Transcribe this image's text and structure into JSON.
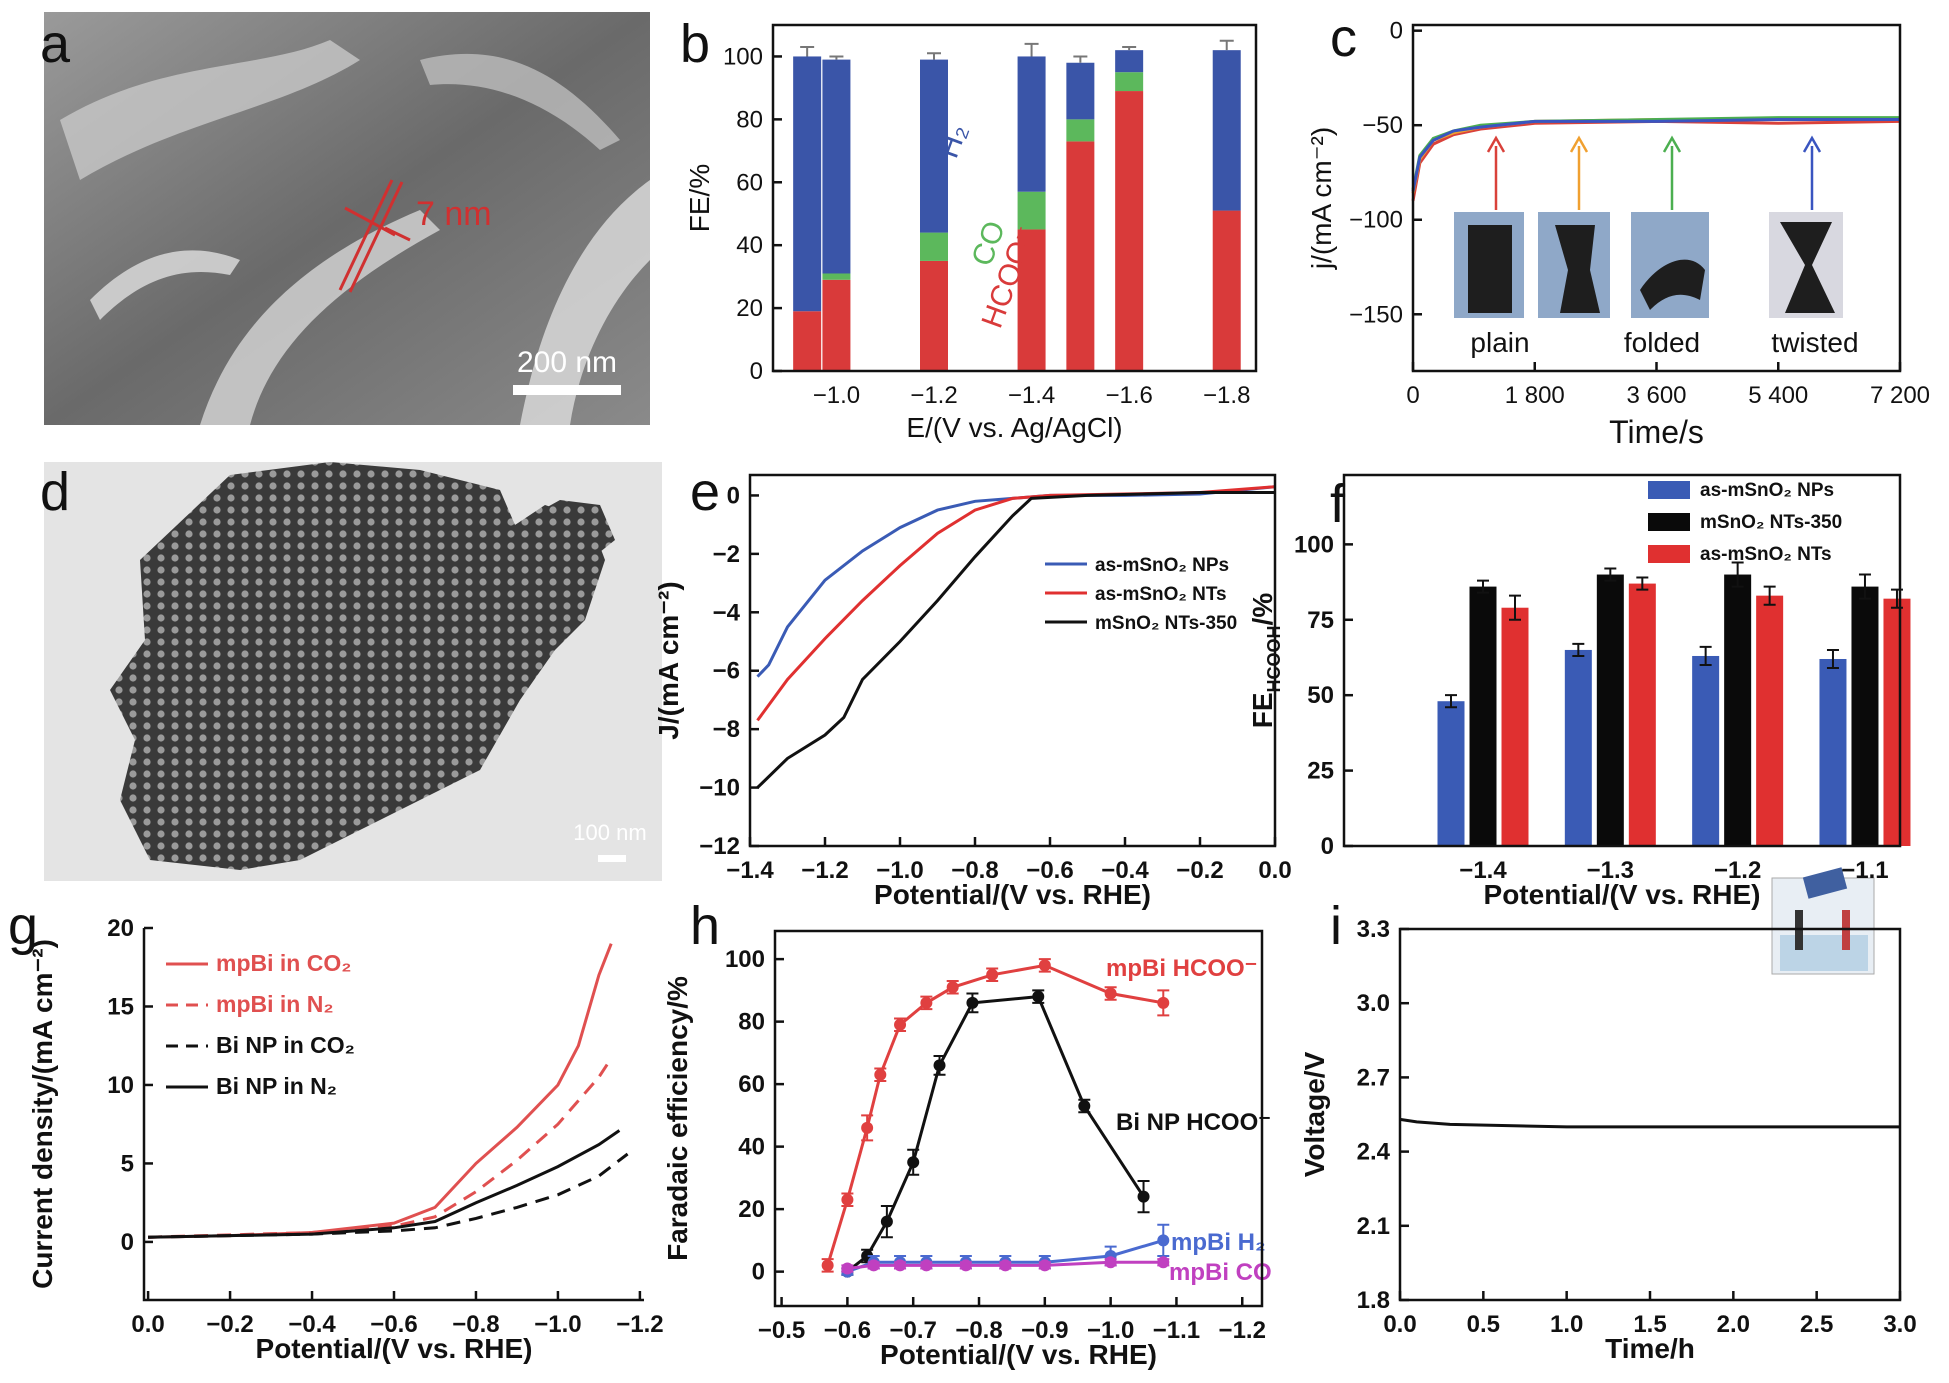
{
  "panel_labels": [
    "a",
    "b",
    "c",
    "d",
    "e",
    "f",
    "g",
    "h",
    "i"
  ],
  "images": {
    "a": {
      "annotation": "7 nm",
      "scale_bar": "200 nm"
    },
    "d": {
      "scale_bar": "100 nm"
    }
  },
  "chart_data": [
    {
      "type": "stacked_bar",
      "xlabel": "E/(V vs. Ag/AgCl)",
      "ylabel": "FE/%",
      "frame": true,
      "x": [
        -0.94,
        -1.0,
        -1.2,
        -1.4,
        -1.5,
        -1.6,
        -1.8
      ],
      "series": [
        {
          "name": "HCOO⁻",
          "color": "#d93a3a",
          "values": [
            19,
            29,
            35,
            45,
            73,
            89,
            51
          ]
        },
        {
          "name": "CO",
          "color": "#5cb85c",
          "values": [
            0,
            2,
            9,
            12,
            7,
            6,
            0
          ]
        },
        {
          "name": "H₂",
          "color": "#3a55a8",
          "values": [
            81,
            68,
            55,
            43,
            18,
            7,
            51
          ]
        }
      ],
      "errors": [
        3,
        1,
        2,
        4,
        2,
        1,
        3
      ],
      "xlim": [
        -0.87,
        -1.86
      ],
      "ylim": [
        0,
        110
      ],
      "xticks": [
        {
          "value": -1.0,
          "label": "−1.0"
        },
        {
          "value": -1.2,
          "label": "−1.2"
        },
        {
          "value": -1.4,
          "label": "−1.4"
        },
        {
          "value": -1.6,
          "label": "−1.6"
        },
        {
          "value": -1.8,
          "label": "−1.8"
        }
      ],
      "yticks": [
        0,
        20,
        40,
        60,
        80,
        100
      ]
    },
    {
      "type": "line",
      "xlabel": "Time/s",
      "ylabel": "j/(mA cm⁻²)",
      "frame": true,
      "annotations": [
        "plain",
        "folded",
        "twisted"
      ],
      "series": [
        {
          "color": "#d9413a",
          "x": [
            0,
            100,
            300,
            600,
            1000,
            1800,
            3600,
            5400,
            7200
          ],
          "values": [
            -90,
            -70,
            -60,
            -55,
            -52,
            -49,
            -48,
            -49,
            -48
          ]
        },
        {
          "color": "#f0a030",
          "x": [
            0,
            100,
            300,
            600,
            1000,
            1800,
            3600,
            5400,
            7200
          ],
          "values": [
            -86,
            -68,
            -58,
            -54,
            -51,
            -48,
            -47,
            -47,
            -47
          ]
        },
        {
          "color": "#4caf50",
          "x": [
            0,
            100,
            300,
            600,
            1000,
            1800,
            3600,
            5400,
            7200
          ],
          "values": [
            -84,
            -66,
            -57,
            -53,
            -50,
            -48,
            -47,
            -46,
            -46
          ]
        },
        {
          "color": "#3a55c0",
          "x": [
            0,
            100,
            300,
            600,
            1000,
            1800,
            3600,
            5400,
            7200
          ],
          "values": [
            -85,
            -67,
            -58,
            -53,
            -51,
            -48,
            -48,
            -47,
            -47
          ]
        }
      ],
      "xlim": [
        0,
        7200
      ],
      "ylim": [
        -180,
        3
      ],
      "xticks": [
        0,
        {
          "value": 1800,
          "label": "1 800"
        },
        {
          "value": 3600,
          "label": "3 600"
        },
        {
          "value": 5400,
          "label": "5 400"
        },
        {
          "value": 7200,
          "label": "7 200"
        }
      ],
      "yticks": [
        0,
        {
          "value": -50,
          "label": "−50"
        },
        {
          "value": -100,
          "label": "−100"
        },
        {
          "value": -150,
          "label": "−150"
        }
      ]
    },
    {
      "type": "line",
      "xlabel": "Potential/(V vs. RHE)",
      "ylabel": "J/(mA cm⁻²)",
      "frame": true,
      "legend": "center right",
      "series": [
        {
          "name": "as-mSnO₂ NPs",
          "color": "#3a5bb5",
          "x": [
            -1.38,
            -1.35,
            -1.3,
            -1.2,
            -1.1,
            -1.0,
            -0.9,
            -0.8,
            -0.6,
            -0.4,
            -0.2,
            0
          ],
          "values": [
            -6.2,
            -5.8,
            -4.5,
            -2.9,
            -1.9,
            -1.1,
            -0.5,
            -0.2,
            0,
            0,
            0.05,
            0.3
          ]
        },
        {
          "name": "as-mSnO₂ NTs",
          "color": "#e03030",
          "x": [
            -1.38,
            -1.3,
            -1.2,
            -1.1,
            -1.0,
            -0.9,
            -0.8,
            -0.7,
            -0.6,
            -0.2,
            0
          ],
          "values": [
            -7.7,
            -6.3,
            -4.9,
            -3.6,
            -2.4,
            -1.3,
            -0.5,
            -0.1,
            0,
            0.1,
            0.3
          ]
        },
        {
          "name": "mSnO₂ NTs-350",
          "color": "#111111",
          "x": [
            -1.38,
            -1.3,
            -1.2,
            -1.15,
            -1.1,
            -1.0,
            -0.9,
            -0.8,
            -0.7,
            -0.65,
            -0.5,
            -0.2,
            0
          ],
          "values": [
            -10,
            -9,
            -8.2,
            -7.6,
            -6.3,
            -5,
            -3.6,
            -2.1,
            -0.7,
            -0.1,
            0,
            0.1,
            0.1
          ]
        }
      ],
      "xlim": [
        -1.4,
        0.0
      ],
      "ylim": [
        -12,
        0.7
      ],
      "xticks": [
        {
          "value": -1.4,
          "label": "−1.4"
        },
        {
          "value": -1.2,
          "label": "−1.2"
        },
        {
          "value": -1.0,
          "label": "−1.0"
        },
        {
          "value": -0.8,
          "label": "−0.8"
        },
        {
          "value": -0.6,
          "label": "−0.6"
        },
        {
          "value": -0.4,
          "label": "−0.4"
        },
        {
          "value": -0.2,
          "label": "−0.2"
        },
        {
          "value": 0.0,
          "label": "0.0"
        }
      ],
      "yticks": [
        0,
        {
          "value": -2,
          "label": "−2"
        },
        {
          "value": -4,
          "label": "−4"
        },
        {
          "value": -6,
          "label": "−6"
        },
        {
          "value": -8,
          "label": "−8"
        },
        {
          "value": -10,
          "label": "−10"
        },
        {
          "value": -12,
          "label": "−12"
        }
      ]
    },
    {
      "type": "bar",
      "xlabel": "Potential/(V vs. RHE)",
      "ylabel": [
        "FE",
        "HCOOH",
        "/%"
      ],
      "frame": true,
      "legend": "upper right",
      "categories": [
        "−1.4",
        "−1.3",
        "−1.2",
        "−1.1"
      ],
      "series": [
        {
          "name": "as-mSnO₂ NPs",
          "color": "#3a5bb5",
          "values": [
            48,
            65,
            63,
            62
          ],
          "errors": [
            2,
            2,
            3,
            3
          ]
        },
        {
          "name": "mSnO₂ NTs-350",
          "color": "#0a0a0a",
          "values": [
            86,
            90,
            90,
            86
          ],
          "errors": [
            2,
            2,
            4,
            4
          ]
        },
        {
          "name": "as-mSnO₂ NTs",
          "color": "#e03030",
          "values": [
            79,
            87,
            83,
            82
          ],
          "errors": [
            4,
            2,
            3,
            3
          ]
        }
      ],
      "ylim": [
        0,
        123
      ],
      "yticks": [
        0,
        25,
        50,
        75,
        100
      ]
    },
    {
      "type": "line",
      "xlabel": "Potential/(V vs. RHE)",
      "ylabel": "Current density/(mA cm⁻²)",
      "frame": false,
      "legend": "upper left",
      "series": [
        {
          "name": "mpBi in CO₂",
          "color": "#e05050",
          "x": [
            0,
            -0.2,
            -0.4,
            -0.6,
            -0.7,
            -0.8,
            -0.9,
            -1.0,
            -1.05,
            -1.1,
            -1.13
          ],
          "values": [
            0.3,
            0.4,
            0.6,
            1.2,
            2.2,
            5,
            7.3,
            10,
            12.5,
            17,
            19
          ]
        },
        {
          "name": "mpBi in N₂",
          "color": "#e05050",
          "dash": true,
          "x": [
            0,
            -0.4,
            -0.6,
            -0.7,
            -0.8,
            -0.9,
            -1.0,
            -1.1,
            -1.13
          ],
          "values": [
            0.3,
            0.6,
            1.0,
            1.6,
            3.2,
            5.2,
            7.5,
            10.5,
            11.7
          ]
        },
        {
          "name": "Bi NP in CO₂",
          "color": "#111111",
          "dash": true,
          "x": [
            0,
            -0.4,
            -0.6,
            -0.7,
            -0.8,
            -0.9,
            -1.0,
            -1.1,
            -1.17
          ],
          "values": [
            0.3,
            0.5,
            0.7,
            0.9,
            1.5,
            2.2,
            3.0,
            4.2,
            5.6
          ]
        },
        {
          "name": "Bi NP in N₂",
          "color": "#111111",
          "x": [
            0,
            -0.4,
            -0.6,
            -0.7,
            -0.8,
            -0.9,
            -1.0,
            -1.1,
            -1.15
          ],
          "values": [
            0.3,
            0.5,
            0.9,
            1.3,
            2.5,
            3.6,
            4.8,
            6.2,
            7.1
          ]
        }
      ],
      "xlim": [
        0.01,
        -1.21
      ],
      "ylim": [
        -3.7,
        20
      ],
      "xticks": [
        {
          "value": 0.0,
          "label": "0.0"
        },
        {
          "value": -0.2,
          "label": "−0.2"
        },
        {
          "value": -0.4,
          "label": "−0.4"
        },
        {
          "value": -0.6,
          "label": "−0.6"
        },
        {
          "value": -0.8,
          "label": "−0.8"
        },
        {
          "value": -1.0,
          "label": "−1.0"
        },
        {
          "value": -1.2,
          "label": "−1.2"
        }
      ],
      "yticks": [
        0,
        5,
        10,
        15,
        20
      ]
    },
    {
      "type": "line",
      "xlabel": "Potential/(V vs. RHE)",
      "ylabel": "Faradaic efficiency/%",
      "frame": true,
      "series": [
        {
          "name": "mpBi HCOO⁻",
          "color": "#e04040",
          "marker": true,
          "x": [
            -0.57,
            -0.6,
            -0.63,
            -0.65,
            -0.68,
            -0.72,
            -0.76,
            -0.82,
            -0.9,
            -1.0,
            -1.08
          ],
          "values": [
            2,
            23,
            46,
            63,
            79,
            86,
            91,
            95,
            98,
            89,
            86
          ],
          "errors": [
            2,
            2,
            4,
            2,
            2,
            2,
            2,
            2,
            2,
            2,
            4
          ]
        },
        {
          "name": "Bi NP HCOO⁻",
          "color": "#111111",
          "marker": true,
          "x": [
            -0.6,
            -0.63,
            -0.66,
            -0.7,
            -0.74,
            -0.79,
            -0.89,
            -0.96,
            -1.05
          ],
          "values": [
            0,
            5,
            16,
            35,
            66,
            86,
            88,
            53,
            24
          ],
          "errors": [
            1,
            2,
            5,
            4,
            3,
            3,
            2,
            2,
            5
          ]
        },
        {
          "name": "mpBi H₂",
          "color": "#4a6ad0",
          "marker": true,
          "x": [
            -0.6,
            -0.64,
            -0.68,
            -0.72,
            -0.78,
            -0.84,
            -0.9,
            -1.0,
            -1.08
          ],
          "values": [
            0,
            3,
            3,
            3,
            3,
            3,
            3,
            5,
            10
          ],
          "errors": [
            1,
            2,
            2,
            2,
            2,
            2,
            2,
            3,
            5
          ]
        },
        {
          "name": "mpBi CO",
          "color": "#c040c0",
          "marker": true,
          "x": [
            -0.6,
            -0.64,
            -0.68,
            -0.72,
            -0.78,
            -0.84,
            -0.9,
            -1.0,
            -1.08
          ],
          "values": [
            1,
            2,
            2,
            2,
            2,
            2,
            2,
            3,
            3
          ],
          "errors": [
            1,
            1,
            1,
            1,
            1,
            1,
            1,
            1,
            1
          ]
        }
      ],
      "xlim": [
        -0.49,
        -1.23
      ],
      "ylim": [
        -11,
        109
      ],
      "xticks": [
        {
          "value": -0.5,
          "label": "−0.5"
        },
        {
          "value": -0.6,
          "label": "−0.6"
        },
        {
          "value": -0.7,
          "label": "−0.7"
        },
        {
          "value": -0.8,
          "label": "−0.8"
        },
        {
          "value": -0.9,
          "label": "−0.9"
        },
        {
          "value": -1.0,
          "label": "−1.0"
        },
        {
          "value": -1.1,
          "label": "−1.1"
        },
        {
          "value": -1.2,
          "label": "−1.2"
        }
      ],
      "yticks": [
        0,
        20,
        40,
        60,
        80,
        100
      ]
    },
    {
      "type": "line",
      "xlabel": "Time/h",
      "ylabel": "Voltage/V",
      "frame": true,
      "series": [
        {
          "color": "#111111",
          "x": [
            0,
            0.1,
            0.3,
            1,
            2,
            3
          ],
          "values": [
            2.53,
            2.52,
            2.51,
            2.5,
            2.5,
            2.5
          ]
        }
      ],
      "xlim": [
        0,
        3
      ],
      "ylim": [
        1.8,
        3.3
      ],
      "xticks": [
        {
          "value": 0,
          "label": "0.0"
        },
        0.5,
        {
          "value": 1,
          "label": "1.0"
        },
        1.5,
        {
          "value": 2,
          "label": "2.0"
        },
        2.5,
        {
          "value": 3,
          "label": "3.0"
        }
      ],
      "yticks": [
        1.8,
        2.1,
        2.4,
        2.7,
        {
          "value": 3,
          "label": "3.0"
        },
        3.3
      ]
    }
  ]
}
